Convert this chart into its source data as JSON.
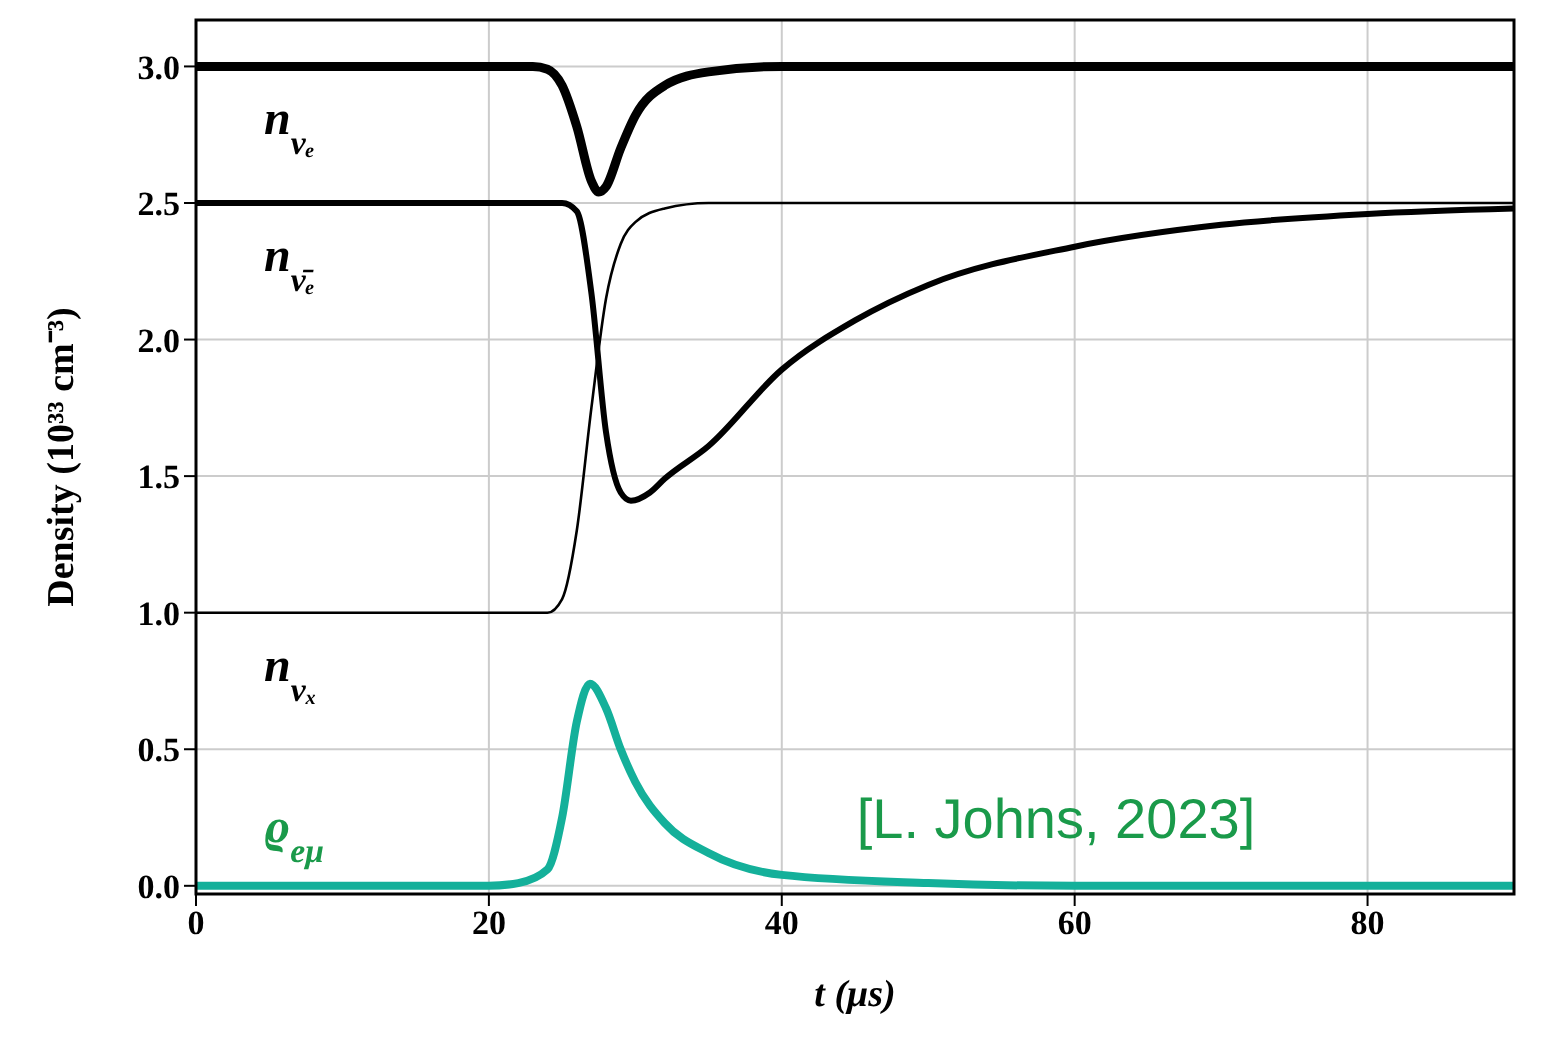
{
  "chart_data": {
    "type": "line",
    "xlabel": "t (μs)",
    "ylabel": "Density (10³³ cm⁻³)",
    "xlim": [
      0,
      90
    ],
    "xticks": [
      0,
      20,
      40,
      60,
      80
    ],
    "ylim": [
      -0.03,
      3.17
    ],
    "yticks": [
      {
        "value": 0,
        "label": "0.0"
      },
      0.5,
      {
        "value": 1,
        "label": "1.0"
      },
      1.5,
      {
        "value": 2,
        "label": "2.0"
      },
      2.5,
      {
        "value": 3,
        "label": "3.0"
      }
    ],
    "grid": true,
    "marker": "none",
    "line_style": "solid",
    "series": [
      {
        "name": "n$_{νₑ}$",
        "color": "#000000",
        "x": [
          0,
          20,
          23,
          24,
          25,
          26,
          27,
          27.5,
          28,
          29,
          30,
          32,
          35,
          40,
          60,
          90
        ],
        "values": [
          3.0,
          3.0,
          3.0,
          2.99,
          2.93,
          2.78,
          2.58,
          2.54,
          2.56,
          2.7,
          2.82,
          2.93,
          2.98,
          3.0,
          3.0,
          3.0
        ]
      },
      {
        "name": "n$_{ν̄ₑ}$",
        "color": "#000000",
        "x": [
          0,
          20,
          24,
          25,
          26,
          27,
          28,
          29,
          29.7,
          31,
          32,
          35,
          40,
          45,
          50,
          60,
          70,
          80,
          90
        ],
        "values": [
          2.5,
          2.5,
          2.5,
          2.5,
          2.47,
          2.17,
          1.66,
          1.44,
          1.41,
          1.44,
          1.49,
          1.61,
          1.89,
          2.07,
          2.2,
          2.34,
          2.42,
          2.46,
          2.48
        ]
      },
      {
        "name": "n$_{νₓ}$",
        "color": "#000000",
        "x": [
          0,
          20,
          24,
          25,
          26,
          27,
          28,
          29,
          30,
          32,
          35,
          40,
          60,
          90
        ],
        "values": [
          1.0,
          1.0,
          1.0,
          1.05,
          1.3,
          1.75,
          2.15,
          2.35,
          2.43,
          2.48,
          2.5,
          2.5,
          2.5,
          2.5
        ]
      },
      {
        "name": "ϱ$_{eμ}$",
        "color": "#14b09a",
        "x": [
          0,
          20,
          22,
          24,
          25,
          26,
          26.9,
          28,
          29,
          30,
          32,
          35,
          40,
          50,
          60,
          90
        ],
        "values": [
          0,
          0,
          0.01,
          0.06,
          0.25,
          0.6,
          0.74,
          0.65,
          0.5,
          0.38,
          0.23,
          0.12,
          0.04,
          0.01,
          0,
          0
        ]
      }
    ],
    "annotations": [
      "[L. Johns, 2023]"
    ]
  }
}
